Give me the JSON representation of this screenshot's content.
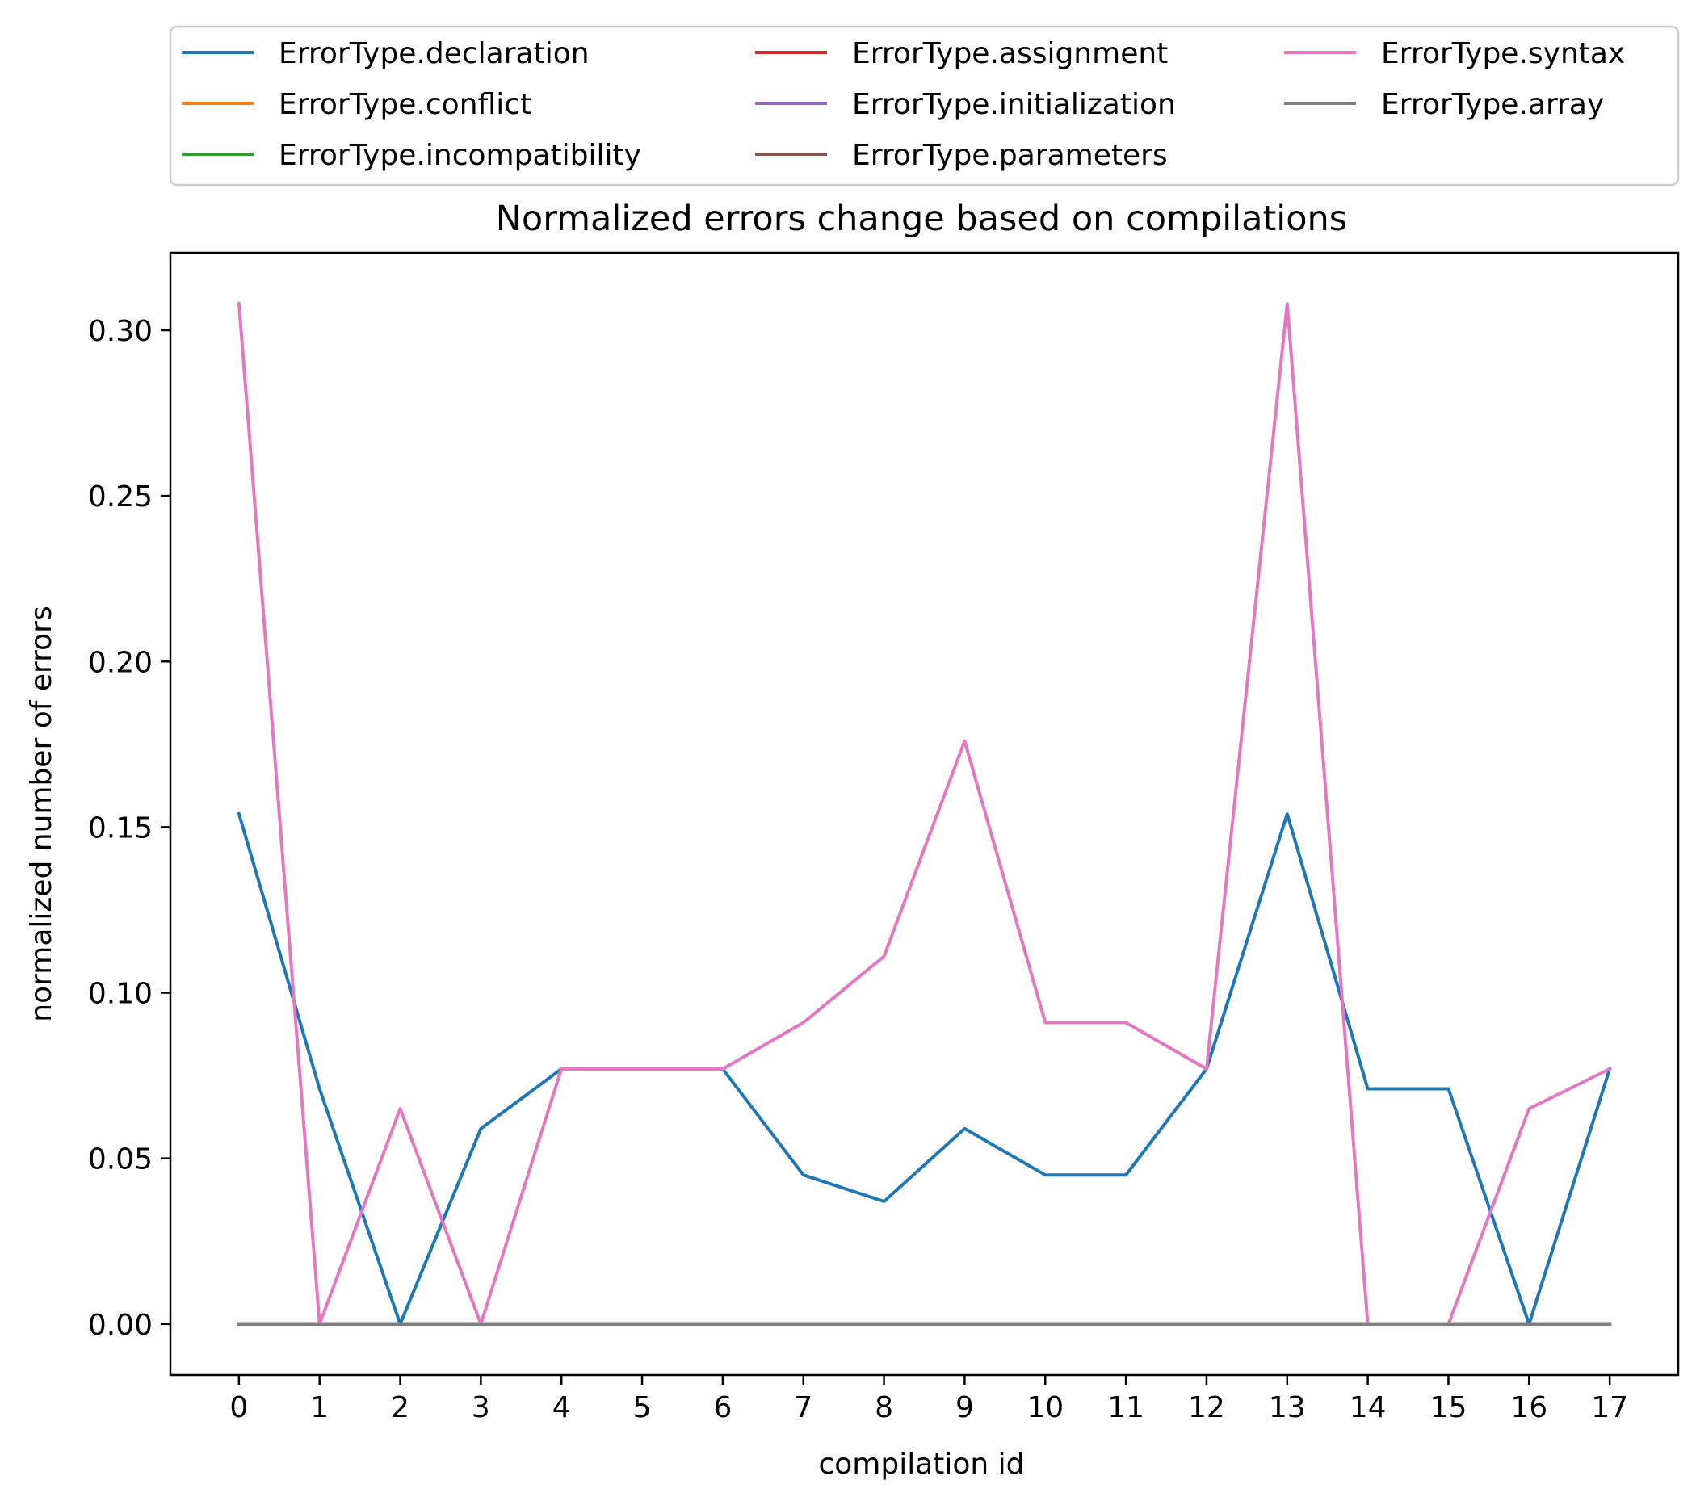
{
  "chart_data": {
    "type": "line",
    "title": "Normalized errors change based on compilations",
    "xlabel": "compilation id",
    "ylabel": "normalized number of errors",
    "x": [
      0,
      1,
      2,
      3,
      4,
      5,
      6,
      7,
      8,
      9,
      10,
      11,
      12,
      13,
      14,
      15,
      16,
      17
    ],
    "xticks": [
      "0",
      "1",
      "2",
      "3",
      "4",
      "5",
      "6",
      "7",
      "8",
      "9",
      "10",
      "11",
      "12",
      "13",
      "14",
      "15",
      "16",
      "17"
    ],
    "yticks": [
      "0.00",
      "0.05",
      "0.10",
      "0.15",
      "0.20",
      "0.25",
      "0.30"
    ],
    "xlim": [
      -0.85,
      17.85
    ],
    "ylim": [
      -0.0154,
      0.3234
    ],
    "grid": false,
    "legend_position": "top, above plot, 3 columns",
    "series": [
      {
        "name": "ErrorType.declaration",
        "color": "#1f77b4",
        "values": [
          0.154,
          0.071,
          0.0,
          0.059,
          0.077,
          0.077,
          0.077,
          0.045,
          0.037,
          0.059,
          0.045,
          0.045,
          0.077,
          0.154,
          0.071,
          0.071,
          0.0,
          0.077
        ]
      },
      {
        "name": "ErrorType.conflict",
        "color": "#ff7f0e",
        "values": [
          0,
          0,
          0,
          0,
          0,
          0,
          0,
          0,
          0,
          0,
          0,
          0,
          0,
          0,
          0,
          0,
          0,
          0
        ]
      },
      {
        "name": "ErrorType.incompatibility",
        "color": "#2ca02c",
        "values": [
          0,
          0,
          0,
          0,
          0,
          0,
          0,
          0,
          0,
          0,
          0,
          0,
          0,
          0,
          0,
          0,
          0,
          0
        ]
      },
      {
        "name": "ErrorType.assignment",
        "color": "#d62728",
        "values": [
          0,
          0,
          0,
          0,
          0,
          0,
          0,
          0,
          0,
          0,
          0,
          0,
          0,
          0,
          0,
          0,
          0,
          0
        ]
      },
      {
        "name": "ErrorType.initialization",
        "color": "#9467bd",
        "values": [
          0,
          0,
          0,
          0,
          0,
          0,
          0,
          0,
          0,
          0,
          0,
          0,
          0,
          0,
          0,
          0,
          0,
          0
        ]
      },
      {
        "name": "ErrorType.parameters",
        "color": "#8c564b",
        "values": [
          0,
          0,
          0,
          0,
          0,
          0,
          0,
          0,
          0,
          0,
          0,
          0,
          0,
          0,
          0,
          0,
          0,
          0
        ]
      },
      {
        "name": "ErrorType.syntax",
        "color": "#e377c2",
        "values": [
          0.308,
          0.0,
          0.065,
          0.0,
          0.077,
          0.077,
          0.077,
          0.091,
          0.111,
          0.176,
          0.091,
          0.091,
          0.077,
          0.308,
          0.0,
          0.0,
          0.065,
          0.077
        ]
      },
      {
        "name": "ErrorType.array",
        "color": "#7f7f7f",
        "values": [
          0,
          0,
          0,
          0,
          0,
          0,
          0,
          0,
          0,
          0,
          0,
          0,
          0,
          0,
          0,
          0,
          0,
          0
        ]
      }
    ]
  }
}
